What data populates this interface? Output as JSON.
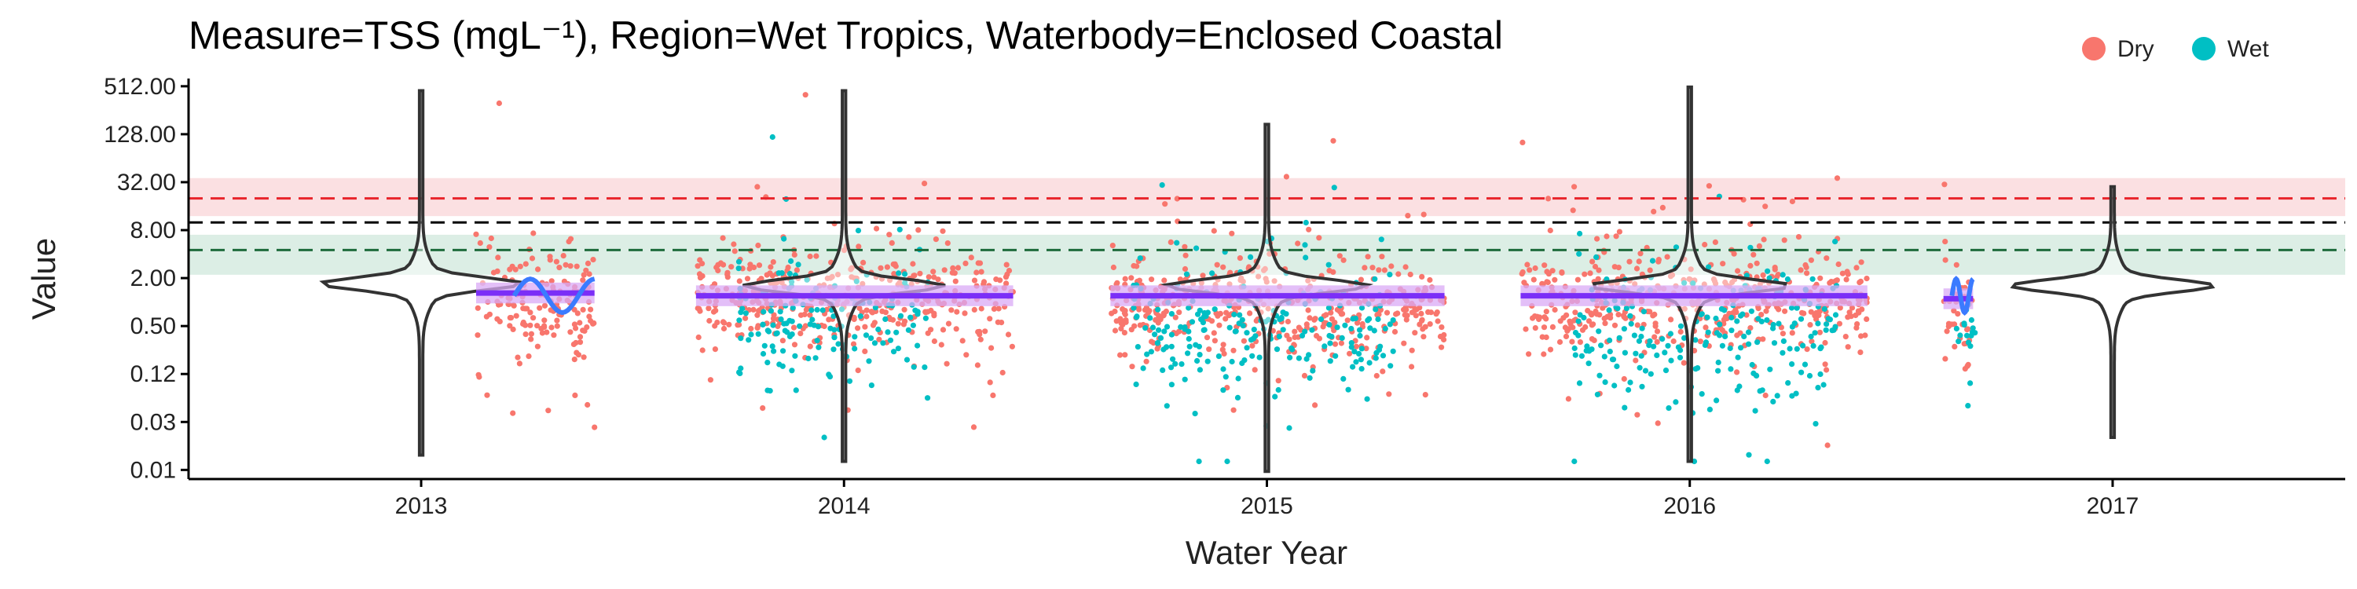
{
  "chart_data": {
    "type": "scatter",
    "title": "Measure=TSS (mgL⁻¹), Region=Wet Tropics, Waterbody=Enclosed Coastal",
    "xlabel": "Water Year",
    "ylabel": "Value",
    "y_scale": "log2",
    "ylim": [
      0.006,
      640
    ],
    "xlim": [
      2012.45,
      2017.55
    ],
    "x_ticks": [
      {
        "value": 2013,
        "label": "2013"
      },
      {
        "value": 2014,
        "label": "2014"
      },
      {
        "value": 2015,
        "label": "2015"
      },
      {
        "value": 2016,
        "label": "2016"
      },
      {
        "value": 2017,
        "label": "2017"
      }
    ],
    "y_ticks": [
      {
        "value": 0.0078125,
        "label": "0.01"
      },
      {
        "value": 0.03125,
        "label": "0.03"
      },
      {
        "value": 0.125,
        "label": "0.12"
      },
      {
        "value": 0.5,
        "label": "0.50"
      },
      {
        "value": 2,
        "label": "2.00"
      },
      {
        "value": 8,
        "label": "8.00"
      },
      {
        "value": 32,
        "label": "32.00"
      },
      {
        "value": 128,
        "label": "128.00"
      },
      {
        "value": 512,
        "label": "512.00"
      }
    ],
    "grid": false,
    "legend": {
      "position": "top-right",
      "entries": [
        {
          "name": "Dry",
          "color": "#F8766D"
        },
        {
          "name": "Wet",
          "color": "#00BFC4"
        }
      ]
    },
    "colors": {
      "dry": "#F8766D",
      "wet": "#00BFC4",
      "violin": "#333333",
      "trend_line": "#7B2FF7",
      "trend_band": "#D9A9F5",
      "smooth_line": "#3B7BFF"
    },
    "reference_lines": [
      {
        "value": 20,
        "band": [
          12,
          36
        ],
        "color": "#E8242B",
        "band_color": "#FADADD"
      },
      {
        "value": 10,
        "color": "#000000"
      },
      {
        "value": 4.5,
        "band": [
          2.2,
          7
        ],
        "color": "#1E6B3C",
        "band_color": "#D6EBE0"
      }
    ],
    "series": [
      {
        "name": "Dry",
        "segments": [
          {
            "x_range": [
              2013.13,
              2013.41
            ],
            "median": 1.0,
            "spread": 1.1,
            "min": 0.01,
            "max": 500
          },
          {
            "x_range": [
              2013.65,
              2014.4
            ],
            "median": 1.2,
            "spread": 1.0,
            "min": 0.02,
            "max": 400
          },
          {
            "x_range": [
              2014.63,
              2015.42
            ],
            "median": 0.9,
            "spread": 1.0,
            "min": 0.007,
            "max": 200
          },
          {
            "x_range": [
              2015.6,
              2016.42
            ],
            "median": 1.0,
            "spread": 1.1,
            "min": 0.01,
            "max": 500
          },
          {
            "x_range": [
              2016.6,
              2016.67
            ],
            "median": 0.7,
            "spread": 1.0,
            "min": 0.02,
            "max": 30
          }
        ]
      },
      {
        "name": "Wet",
        "segments": [
          {
            "x_range": [
              2013.75,
              2014.2
            ],
            "median": 0.6,
            "spread": 1.4,
            "min": 0.02,
            "max": 512
          },
          {
            "x_range": [
              2014.68,
              2015.3
            ],
            "median": 0.4,
            "spread": 1.3,
            "min": 0.01,
            "max": 64
          },
          {
            "x_range": [
              2015.72,
              2016.35
            ],
            "median": 0.4,
            "spread": 1.5,
            "min": 0.01,
            "max": 128
          },
          {
            "x_range": [
              2016.63,
              2016.68
            ],
            "median": 0.5,
            "spread": 1.0,
            "min": 0.05,
            "max": 2
          }
        ]
      }
    ],
    "violins": [
      {
        "year": 2013,
        "mode": 1.7,
        "min": 0.012,
        "max": 450
      },
      {
        "year": 2014,
        "mode": 1.6,
        "min": 0.01,
        "max": 450
      },
      {
        "year": 2015,
        "mode": 1.6,
        "min": 0.0075,
        "max": 170
      },
      {
        "year": 2016,
        "mode": 1.6,
        "min": 0.01,
        "max": 500
      },
      {
        "year": 2017,
        "mode": 1.6,
        "min": 0.02,
        "max": 28
      }
    ],
    "trend": [
      {
        "x_range": [
          2013.13,
          2013.41
        ],
        "value": 1.3
      },
      {
        "x_range": [
          2013.65,
          2014.4
        ],
        "value": 1.2
      },
      {
        "x_range": [
          2014.63,
          2015.42
        ],
        "value": 1.2
      },
      {
        "x_range": [
          2015.6,
          2016.42
        ],
        "value": 1.2
      },
      {
        "x_range": [
          2016.6,
          2016.67
        ],
        "value": 1.1
      }
    ]
  }
}
